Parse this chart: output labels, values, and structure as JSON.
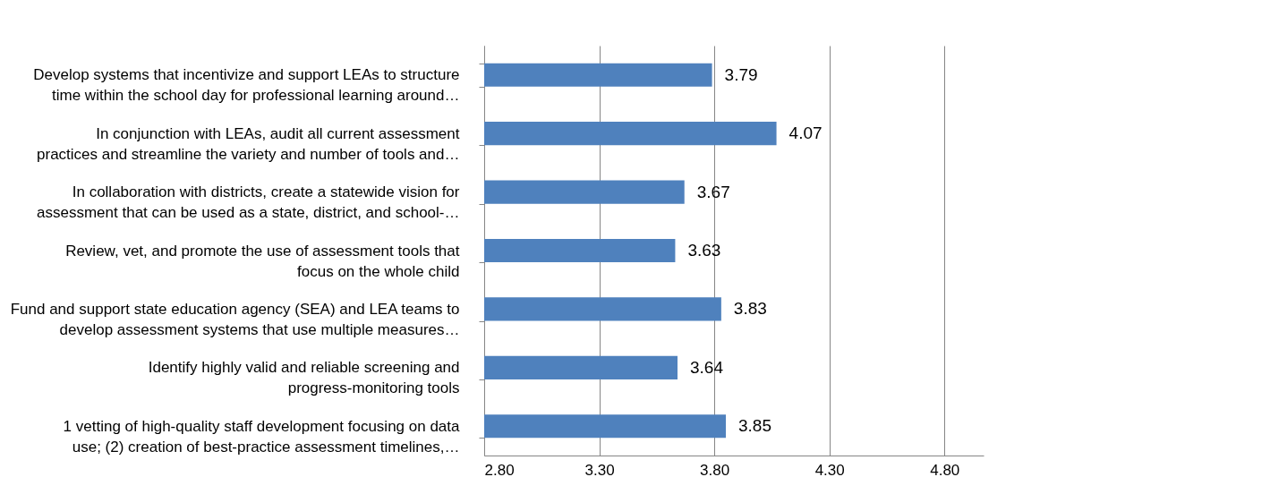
{
  "chart_data": {
    "type": "bar",
    "orientation": "horizontal",
    "categories": [
      "Develop systems that incentivize and support LEAs to structure time within the school day for professional learning around…",
      "In conjunction with LEAs, audit all current assessment practices and streamline the variety and number of tools and…",
      "In collaboration with districts, create a statewide vision for assessment that can be used as a state, district, and school-…",
      "Review, vet, and promote the use of assessment tools that focus on the whole child",
      "Fund and support state education agency (SEA) and LEA teams to develop assessment systems that use multiple measures…",
      "Identify highly valid and reliable screening and progress-monitoring tools",
      "1 vetting of high-quality staff development focusing on data use; (2) creation of best-practice assessment timelines,…"
    ],
    "values": [
      3.79,
      4.07,
      3.67,
      3.63,
      3.83,
      3.64,
      3.85
    ],
    "color": "#4f81bd",
    "xlim": [
      2.8,
      4.97
    ],
    "xticks": [
      {
        "value": 2.8,
        "label": "2.80"
      },
      {
        "value": 3.3,
        "label": "3.30"
      },
      {
        "value": 3.8,
        "label": "3.80"
      },
      {
        "value": 4.3,
        "label": "4.30"
      },
      {
        "value": 4.8,
        "label": "4.80"
      }
    ],
    "grid": "x",
    "data_labels": true
  }
}
